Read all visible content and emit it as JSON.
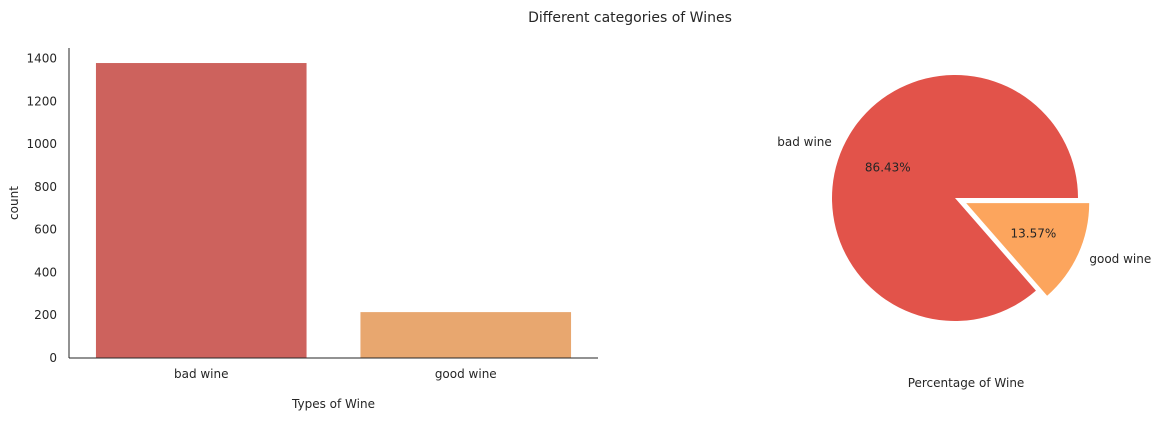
{
  "figure": {
    "title": "Different categories of Wines"
  },
  "colors": {
    "bar_bad": "#cd625d",
    "bar_good": "#e8a76f",
    "pie_bad": "#e2534a",
    "pie_good": "#fca55d",
    "axis": "#262626"
  },
  "chart_data": [
    {
      "type": "bar",
      "categories": [
        "bad wine",
        "good wine"
      ],
      "values": [
        1382,
        217
      ],
      "xlabel": "Types of Wine",
      "ylabel": "count",
      "ylim": [
        0,
        1450
      ],
      "yticks": [
        0,
        200,
        400,
        600,
        800,
        1000,
        1200,
        1400
      ],
      "grid": false
    },
    {
      "type": "pie",
      "labels": [
        "bad wine",
        "good wine"
      ],
      "values": [
        86.43,
        13.57
      ],
      "pct_labels": [
        "86.43%",
        "13.57%"
      ],
      "explode": [
        0,
        0.1
      ],
      "xlabel": "Percentage of Wine"
    }
  ]
}
